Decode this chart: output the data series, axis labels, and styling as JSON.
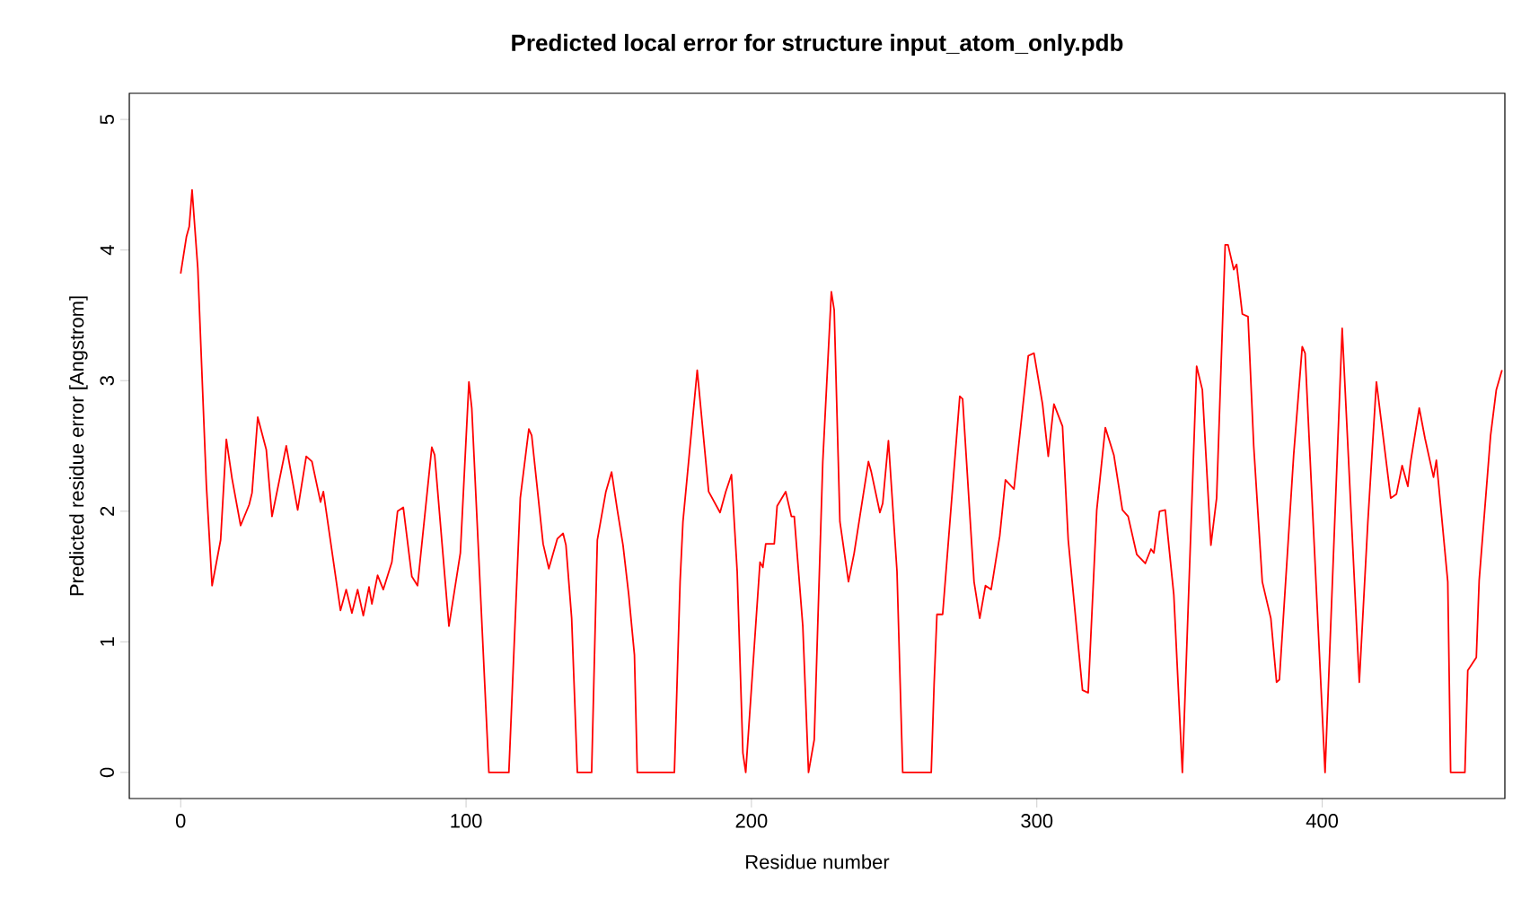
{
  "chart_data": {
    "type": "line",
    "title": "Predicted local error for structure input_atom_only.pdb",
    "xlabel": "Residue number",
    "ylabel": "Predicted residue error [Angstrom]",
    "x": [
      0,
      2,
      3,
      4,
      6,
      9,
      11,
      14,
      16,
      18,
      21,
      24,
      25,
      27,
      30,
      32,
      37,
      41,
      44,
      46,
      49,
      50,
      56,
      58,
      60,
      62,
      64,
      66,
      67,
      69,
      71,
      74,
      76,
      78,
      81,
      83,
      88,
      89,
      94,
      98,
      101,
      102,
      108,
      115,
      119,
      122,
      123,
      127,
      129,
      132,
      134,
      135,
      137,
      139,
      144,
      146,
      149,
      151,
      153,
      155,
      157,
      159,
      160,
      173,
      175,
      176,
      181,
      185,
      189,
      191,
      193,
      195,
      197,
      198,
      203,
      204,
      205,
      208,
      209,
      212,
      214,
      215,
      218,
      220,
      222,
      225,
      228,
      229,
      231,
      234,
      236,
      237,
      241,
      242,
      245,
      246,
      248,
      251,
      253,
      263,
      264,
      265,
      267,
      273,
      274,
      278,
      280,
      282,
      284,
      287,
      289,
      292,
      297,
      299,
      302,
      304,
      306,
      309,
      311,
      316,
      318,
      321,
      324,
      327,
      330,
      332,
      335,
      338,
      340,
      341,
      343,
      345,
      348,
      351,
      356,
      358,
      361,
      363,
      366,
      367,
      369,
      370,
      372,
      374,
      376,
      379,
      382,
      384,
      385,
      390,
      393,
      394,
      401,
      407,
      413,
      416,
      419,
      424,
      426,
      428,
      430,
      431,
      434,
      436,
      439,
      440,
      444,
      445,
      450,
      451,
      454,
      455,
      459,
      461,
      463
    ],
    "series": [
      {
        "color": "#ff0000",
        "values": [
          3.82,
          4.1,
          4.18,
          4.46,
          3.86,
          2.2,
          1.43,
          1.78,
          2.55,
          2.25,
          1.89,
          2.05,
          2.14,
          2.72,
          2.47,
          1.96,
          2.5,
          2.01,
          2.42,
          2.38,
          2.07,
          2.15,
          1.24,
          1.4,
          1.22,
          1.4,
          1.2,
          1.42,
          1.29,
          1.51,
          1.4,
          1.61,
          2.0,
          2.03,
          1.5,
          1.43,
          2.49,
          2.43,
          1.12,
          1.68,
          2.99,
          2.79,
          0,
          0,
          2.1,
          2.63,
          2.58,
          1.75,
          1.56,
          1.79,
          1.83,
          1.74,
          1.18,
          0,
          0,
          1.78,
          2.15,
          2.3,
          2.01,
          1.74,
          1.36,
          0.9,
          0,
          0,
          1.46,
          1.92,
          3.08,
          2.15,
          1.99,
          2.15,
          2.28,
          1.54,
          0.15,
          0,
          1.61,
          1.57,
          1.75,
          1.75,
          2.04,
          2.15,
          1.96,
          1.96,
          1.12,
          0,
          0.25,
          2.38,
          3.68,
          3.54,
          1.92,
          1.46,
          1.68,
          1.82,
          2.38,
          2.3,
          1.99,
          2.06,
          2.54,
          1.54,
          0,
          0,
          0.67,
          1.21,
          1.21,
          2.88,
          2.86,
          1.46,
          1.18,
          1.43,
          1.4,
          1.81,
          2.24,
          2.17,
          3.19,
          3.21,
          2.82,
          2.42,
          2.82,
          2.65,
          1.78,
          0.63,
          0.61,
          2.01,
          2.64,
          2.43,
          2.01,
          1.96,
          1.67,
          1.6,
          1.71,
          1.68,
          2.0,
          2.01,
          1.36,
          0,
          3.11,
          2.93,
          1.74,
          2.1,
          4.04,
          4.04,
          3.85,
          3.89,
          3.51,
          3.49,
          2.5,
          1.46,
          1.18,
          0.69,
          0.71,
          2.43,
          3.26,
          3.21,
          0,
          3.4,
          0.69,
          1.92,
          2.99,
          2.1,
          2.13,
          2.35,
          2.19,
          2.38,
          2.79,
          2.56,
          2.26,
          2.39,
          1.46,
          0,
          0,
          0.78,
          0.88,
          1.47,
          2.58,
          2.93,
          3.08
        ]
      }
    ],
    "xlim": [
      -18,
      464
    ],
    "ylim": [
      -0.2,
      5.2
    ],
    "xticks": [
      0,
      100,
      200,
      300,
      400
    ],
    "yticks": [
      0,
      1,
      2,
      3,
      4,
      5
    ]
  }
}
